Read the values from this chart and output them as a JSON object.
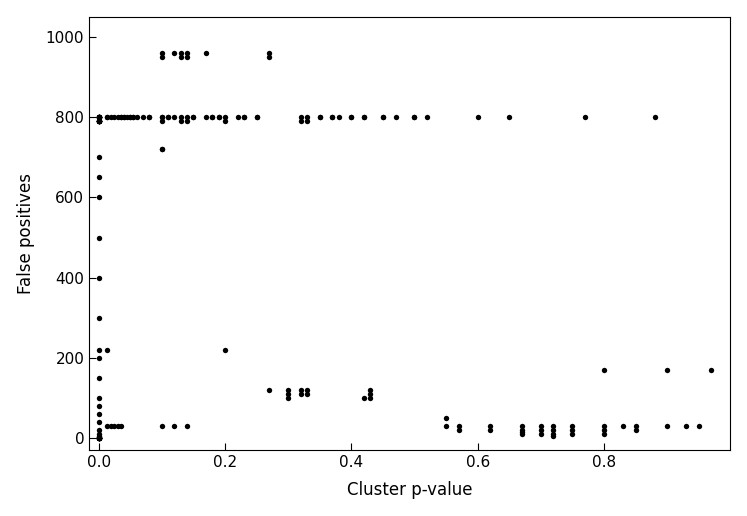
{
  "x": [
    0.001,
    0.001,
    0.001,
    0.001,
    0.001,
    0.001,
    0.001,
    0.001,
    0.001,
    0.001,
    0.001,
    0.001,
    0.001,
    0.001,
    0.001,
    0.001,
    0.001,
    0.001,
    0.001,
    0.001,
    0.001,
    0.001,
    0.001,
    0.001,
    0.001,
    0.001,
    0.001,
    0.001,
    0.001,
    0.001,
    0.001,
    0.001,
    0.001,
    0.001,
    0.001,
    0.001,
    0.001,
    0.001,
    0.001,
    0.001,
    0.001,
    0.001,
    0.001,
    0.001,
    0.001,
    0.001,
    0.001,
    0.001,
    0.001,
    0.001,
    0.013,
    0.013,
    0.013,
    0.013,
    0.02,
    0.02,
    0.025,
    0.025,
    0.03,
    0.03,
    0.035,
    0.035,
    0.035,
    0.04,
    0.04,
    0.045,
    0.05,
    0.05,
    0.055,
    0.055,
    0.06,
    0.07,
    0.08,
    0.08,
    0.1,
    0.1,
    0.1,
    0.1,
    0.1,
    0.1,
    0.1,
    0.1,
    0.11,
    0.11,
    0.12,
    0.12,
    0.12,
    0.13,
    0.13,
    0.13,
    0.13,
    0.14,
    0.14,
    0.14,
    0.14,
    0.14,
    0.15,
    0.15,
    0.17,
    0.17,
    0.18,
    0.18,
    0.19,
    0.19,
    0.2,
    0.2,
    0.2,
    0.22,
    0.23,
    0.23,
    0.25,
    0.25,
    0.27,
    0.27,
    0.27,
    0.3,
    0.3,
    0.3,
    0.32,
    0.32,
    0.32,
    0.32,
    0.33,
    0.33,
    0.33,
    0.33,
    0.35,
    0.35,
    0.37,
    0.37,
    0.38,
    0.4,
    0.4,
    0.42,
    0.42,
    0.42,
    0.43,
    0.43,
    0.43,
    0.45,
    0.45,
    0.47,
    0.5,
    0.5,
    0.52,
    0.55,
    0.55,
    0.57,
    0.57,
    0.6,
    0.62,
    0.62,
    0.65,
    0.67,
    0.67,
    0.67,
    0.67,
    0.7,
    0.7,
    0.7,
    0.72,
    0.72,
    0.72,
    0.72,
    0.75,
    0.75,
    0.75,
    0.77,
    0.8,
    0.8,
    0.8,
    0.8,
    0.83,
    0.85,
    0.85,
    0.88,
    0.9,
    0.9,
    0.93,
    0.95,
    0.97
  ],
  "y": [
    800,
    800,
    800,
    800,
    800,
    800,
    800,
    800,
    800,
    800,
    790,
    790,
    790,
    790,
    790,
    790,
    790,
    790,
    790,
    790,
    700,
    650,
    600,
    500,
    400,
    300,
    220,
    200,
    150,
    100,
    80,
    60,
    40,
    20,
    10,
    5,
    3,
    2,
    1,
    0,
    0,
    0,
    0,
    0,
    0,
    0,
    0,
    0,
    0,
    0,
    800,
    800,
    220,
    30,
    800,
    30,
    800,
    30,
    800,
    30,
    800,
    800,
    30,
    800,
    800,
    800,
    800,
    800,
    800,
    800,
    800,
    800,
    800,
    800,
    960,
    950,
    800,
    800,
    790,
    720,
    720,
    30,
    800,
    800,
    960,
    800,
    30,
    960,
    950,
    800,
    790,
    960,
    950,
    800,
    790,
    30,
    800,
    800,
    960,
    800,
    800,
    800,
    800,
    800,
    800,
    790,
    220,
    800,
    800,
    800,
    800,
    800,
    960,
    950,
    120,
    120,
    110,
    100,
    800,
    790,
    120,
    110,
    800,
    790,
    120,
    110,
    800,
    800,
    800,
    800,
    800,
    800,
    800,
    800,
    800,
    100,
    120,
    110,
    100,
    800,
    800,
    800,
    800,
    800,
    800,
    50,
    30,
    30,
    20,
    800,
    30,
    20,
    800,
    30,
    20,
    15,
    10,
    30,
    20,
    10,
    30,
    20,
    10,
    5,
    30,
    20,
    10,
    800,
    170,
    30,
    20,
    10,
    30,
    30,
    20,
    800,
    170,
    30,
    30,
    30,
    170
  ],
  "xlabel": "Cluster p-value",
  "ylabel": "False positives",
  "xlim": [
    -0.015,
    1.0
  ],
  "ylim": [
    -30,
    1050
  ],
  "xticks": [
    0.0,
    0.2,
    0.4,
    0.6,
    0.8
  ],
  "yticks": [
    0,
    200,
    400,
    600,
    800,
    1000
  ],
  "bg_color": "#ffffff",
  "dot_color": "#000000",
  "dot_size": 15
}
